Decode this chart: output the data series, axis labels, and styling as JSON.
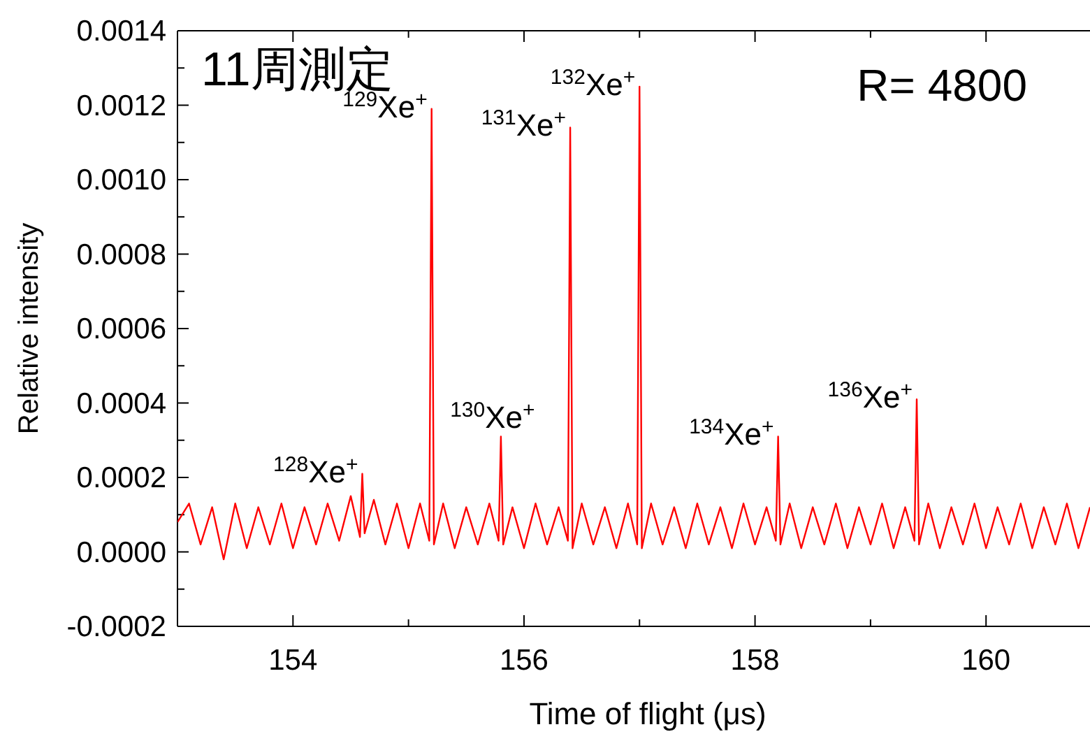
{
  "chart_data": {
    "type": "line",
    "title": "11周測定",
    "xlabel": "Time of flight (μs)",
    "ylabel": "Relative intensity",
    "xlim": [
      153,
      160.9
    ],
    "xticks": [
      154,
      {
        "value": 155,
        "label": null
      },
      156,
      {
        "value": 157,
        "label": null
      },
      158,
      {
        "value": 159,
        "label": null
      },
      160
    ],
    "ylim": [
      -0.0002,
      0.0014
    ],
    "yticks": [
      {
        "value": -0.0002,
        "label": "-0.0002"
      },
      {
        "value": -0.0001,
        "label": null
      },
      {
        "value": 0,
        "label": "0.0000"
      },
      {
        "value": 0.0001,
        "label": null
      },
      {
        "value": 0.0002,
        "label": "0.0002"
      },
      {
        "value": 0.0003,
        "label": null
      },
      {
        "value": 0.0004,
        "label": "0.0004"
      },
      {
        "value": 0.0005,
        "label": null
      },
      {
        "value": 0.0006,
        "label": "0.0006"
      },
      {
        "value": 0.0007,
        "label": null
      },
      {
        "value": 0.0008,
        "label": "0.0008"
      },
      {
        "value": 0.0009,
        "label": null
      },
      {
        "value": 0.001,
        "label": "0.0010"
      },
      {
        "value": 0.0011,
        "label": null
      },
      {
        "value": 0.0012,
        "label": "0.0012"
      },
      {
        "value": 0.0013,
        "label": null
      },
      {
        "value": 0.0014,
        "label": "0.0014"
      }
    ],
    "grid": false,
    "marker": "none",
    "line_style": "solid",
    "series": [
      {
        "color": "#ff0000",
        "x": [
          153.0,
          153.1,
          153.2,
          153.3,
          153.4,
          153.5,
          153.6,
          153.7,
          153.8,
          153.9,
          154.0,
          154.1,
          154.2,
          154.3,
          154.4,
          154.5,
          154.58,
          154.6,
          154.62,
          154.7,
          154.8,
          154.9,
          155.0,
          155.1,
          155.18,
          155.2,
          155.22,
          155.3,
          155.4,
          155.5,
          155.6,
          155.7,
          155.78,
          155.8,
          155.82,
          155.9,
          156.0,
          156.1,
          156.2,
          156.3,
          156.38,
          156.4,
          156.42,
          156.5,
          156.6,
          156.7,
          156.8,
          156.9,
          156.98,
          157.0,
          157.02,
          157.1,
          157.2,
          157.3,
          157.4,
          157.5,
          157.6,
          157.7,
          157.8,
          157.9,
          158.0,
          158.1,
          158.18,
          158.2,
          158.22,
          158.3,
          158.4,
          158.5,
          158.6,
          158.7,
          158.8,
          158.9,
          159.0,
          159.1,
          159.2,
          159.3,
          159.38,
          159.4,
          159.42,
          159.5,
          159.6,
          159.7,
          159.8,
          159.9,
          160.0,
          160.1,
          160.2,
          160.3,
          160.4,
          160.5,
          160.6,
          160.7,
          160.8,
          160.9
        ],
        "values": [
          8e-05,
          0.00013,
          2e-05,
          0.00012,
          -2e-05,
          0.00013,
          1e-05,
          0.00012,
          2e-05,
          0.00013,
          1e-05,
          0.00012,
          2e-05,
          0.00013,
          3e-05,
          0.00015,
          4e-05,
          0.00021,
          5e-05,
          0.00014,
          2e-05,
          0.00013,
          1e-05,
          0.00013,
          3e-05,
          0.00119,
          2e-05,
          0.00013,
          1e-05,
          0.00012,
          2e-05,
          0.00013,
          3e-05,
          0.00031,
          2e-05,
          0.00012,
          1e-05,
          0.00013,
          2e-05,
          0.00012,
          3e-05,
          0.00114,
          1e-05,
          0.00013,
          2e-05,
          0.00012,
          1e-05,
          0.00013,
          2e-05,
          0.00125,
          1e-05,
          0.00013,
          2e-05,
          0.00012,
          1e-05,
          0.00013,
          2e-05,
          0.00012,
          1e-05,
          0.00013,
          2e-05,
          0.00012,
          3e-05,
          0.00031,
          2e-05,
          0.00013,
          1e-05,
          0.00012,
          2e-05,
          0.00013,
          1e-05,
          0.00012,
          2e-05,
          0.00013,
          1e-05,
          0.00012,
          3e-05,
          0.00041,
          2e-05,
          0.00013,
          1e-05,
          0.00012,
          2e-05,
          0.00013,
          1e-05,
          0.00012,
          2e-05,
          0.00013,
          1e-05,
          0.00012,
          2e-05,
          0.00013,
          1e-05,
          0.00012
        ]
      }
    ],
    "annotations": [
      {
        "text": "$^{128}$Xe$^{+}$",
        "x": 154.6,
        "y": 0.00021
      },
      {
        "text": "$^{129}$Xe$^{+}$",
        "x": 155.2,
        "y": 0.00119
      },
      {
        "text": "$^{130}$Xe$^{+}$",
        "x": 155.8,
        "y": 0.00031
      },
      {
        "text": "$^{131}$Xe$^{+}$",
        "x": 156.4,
        "y": 0.00114
      },
      {
        "text": "$^{132}$Xe$^{+}$",
        "x": 157.0,
        "y": 0.00125
      },
      {
        "text": "$^{134}$Xe$^{+}$",
        "x": 158.2,
        "y": 0.00031
      },
      {
        "text": "$^{136}$Xe$^{+}$",
        "x": 159.4,
        "y": 0.00041
      },
      "R= 4800"
    ]
  }
}
